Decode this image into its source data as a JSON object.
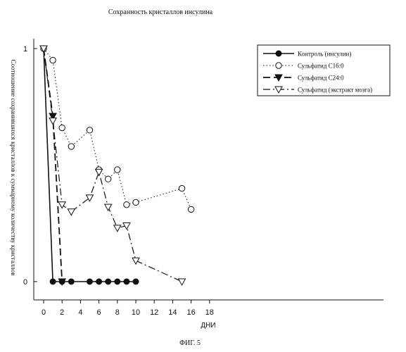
{
  "chart_data": {
    "type": "line",
    "title": "Сохранность кристаллов инсулина",
    "xlabel": "ДНИ",
    "ylabel": "Соотношение сохранившихся кристаллов к суммарному количеству кристаллов",
    "caption": "ФИГ. 5",
    "xlim": [
      0,
      18
    ],
    "ylim": [
      0,
      1
    ],
    "x_ticks": [
      "0",
      "2",
      "4",
      "6",
      "8",
      "10",
      "12",
      "14",
      "16",
      "18"
    ],
    "y_ticks": [
      "0",
      "1"
    ],
    "grid": false,
    "legend_position": "top-right",
    "series": [
      {
        "name": "Контроль (инсулин)",
        "marker": "filled-circle",
        "line": "solid",
        "x": [
          0,
          1,
          2,
          3,
          5,
          6,
          7,
          8,
          9,
          10
        ],
        "y": [
          1.0,
          0.0,
          0.0,
          0.0,
          0.0,
          0.0,
          0.0,
          0.0,
          0.0,
          0.0
        ]
      },
      {
        "name": "Сульфатид С16:0",
        "marker": "open-circle",
        "line": "dotted",
        "x": [
          0,
          1,
          2,
          3,
          5,
          6,
          7,
          8,
          9,
          10,
          15,
          16
        ],
        "y": [
          1.0,
          0.95,
          0.66,
          0.58,
          0.65,
          0.48,
          0.44,
          0.48,
          0.33,
          0.34,
          0.4,
          0.31
        ]
      },
      {
        "name": "Сульфатид С24:0",
        "marker": "filled-triangle-down",
        "line": "dashed",
        "x": [
          0,
          1,
          2
        ],
        "y": [
          1.0,
          0.71,
          0.0
        ]
      },
      {
        "name": "Сульфатид (экстракт мозга)",
        "marker": "open-triangle-down",
        "line": "dash-dot",
        "x": [
          0,
          1,
          2,
          3,
          5,
          6,
          7,
          8,
          9,
          10,
          15
        ],
        "y": [
          1.0,
          0.69,
          0.33,
          0.3,
          0.36,
          0.47,
          0.32,
          0.23,
          0.24,
          0.09,
          0.0
        ]
      }
    ]
  }
}
